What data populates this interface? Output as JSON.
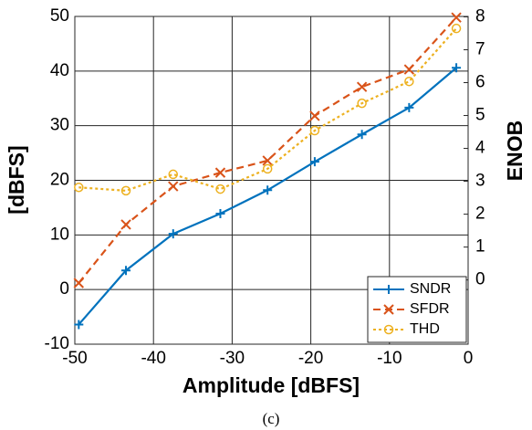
{
  "chart_data": {
    "type": "line",
    "caption": "(c)",
    "xlabel": "Amplitude [dBFS]",
    "ylabel": "[dBFS]",
    "y2label": "ENOB",
    "xlim": [
      -50,
      0
    ],
    "xticks": [
      -50,
      -40,
      -30,
      -20,
      -10,
      0
    ],
    "ylim": [
      -10,
      50
    ],
    "yticks": [
      -10,
      0,
      10,
      20,
      30,
      40,
      50
    ],
    "y2lim": [
      -1.953,
      8.013
    ],
    "y2ticks": [
      0,
      1,
      2,
      3,
      4,
      5,
      6,
      7,
      8
    ],
    "grid": true,
    "legend": "lower right",
    "x": [
      -49.5,
      -43.5,
      -37.5,
      -31.5,
      -25.5,
      -19.5,
      -13.5,
      -7.5,
      -1.5
    ],
    "series": [
      {
        "name": "SNDR",
        "color": "#0072bd",
        "marker": "plus",
        "linestyle": "solid",
        "values": [
          -6.4,
          3.5,
          10.2,
          13.9,
          18.2,
          23.4,
          28.4,
          33.3,
          40.6
        ]
      },
      {
        "name": "SFDR",
        "color": "#d95319",
        "marker": "x",
        "linestyle": "dashed",
        "values": [
          1.2,
          11.9,
          18.9,
          21.4,
          23.6,
          31.8,
          37.1,
          40.3,
          49.8
        ]
      },
      {
        "name": "THD",
        "color": "#edb120",
        "marker": "circle",
        "linestyle": "dotted",
        "values": [
          18.7,
          18.1,
          21.1,
          18.4,
          22.1,
          29.1,
          34.1,
          38.1,
          47.8
        ]
      }
    ]
  }
}
